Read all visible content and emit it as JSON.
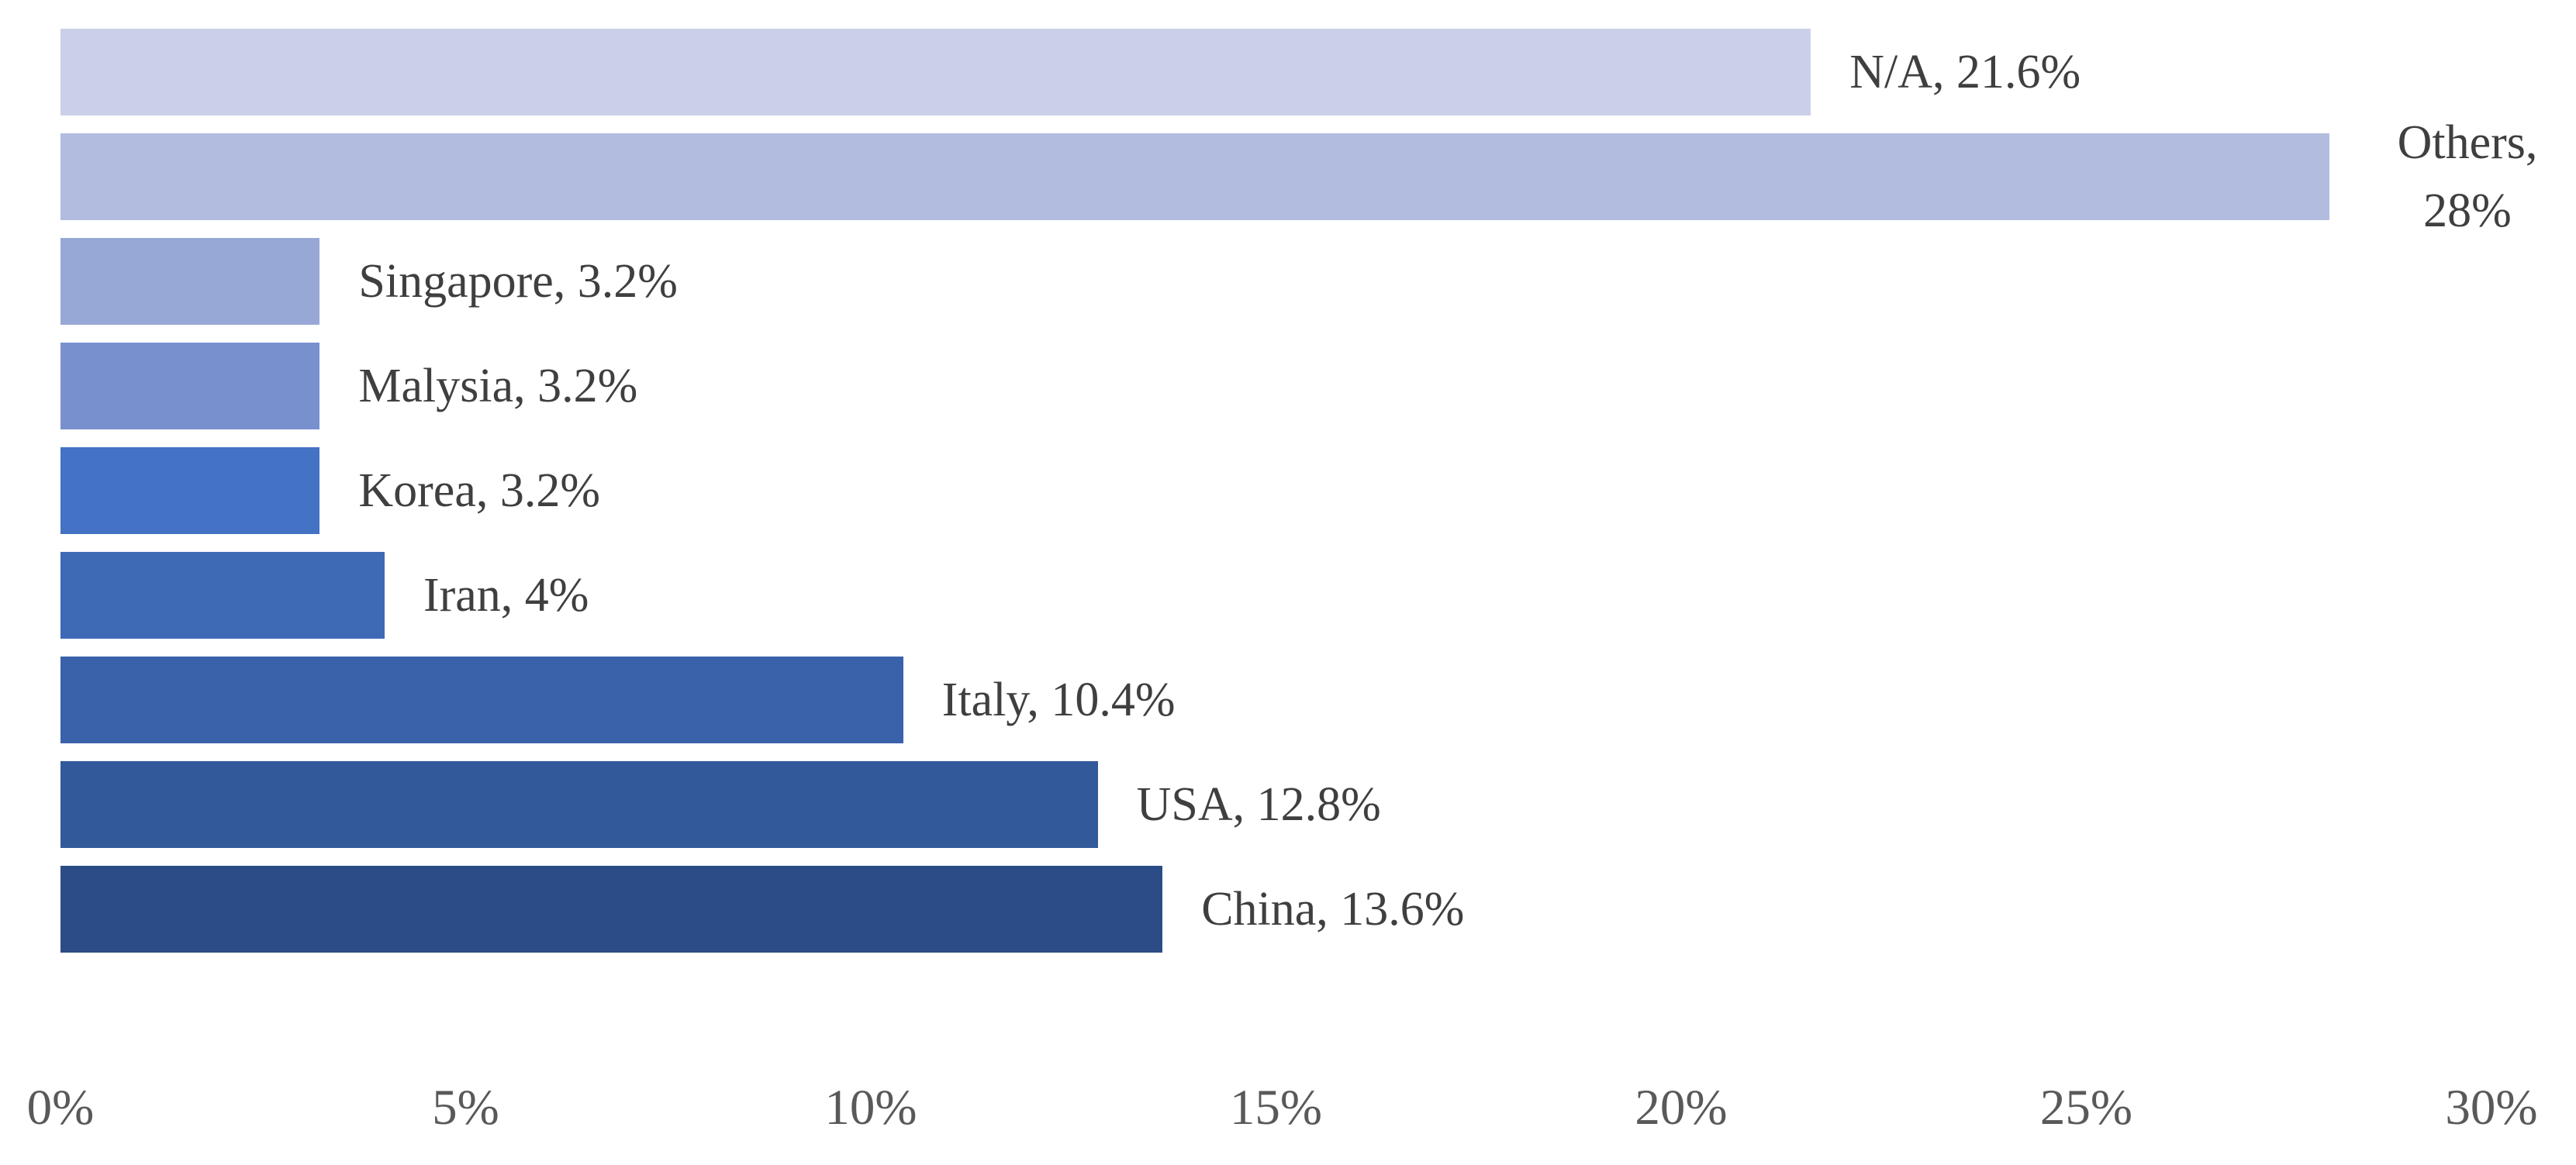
{
  "chart_data": {
    "type": "bar",
    "orientation": "horizontal",
    "title": "",
    "xlabel": "",
    "ylabel": "",
    "categories": [
      "N/A",
      "Others",
      "Singapore",
      "Malysia",
      "Korea",
      "Iran",
      "Italy",
      "USA",
      "China"
    ],
    "values": [
      21.6,
      28,
      3.2,
      3.2,
      3.2,
      4,
      10.4,
      12.8,
      13.6
    ],
    "data_labels": [
      "N/A, 21.6%",
      "Others, 28%",
      "Singapore, 3.2%",
      "Malysia, 3.2%",
      "Korea, 3.2%",
      "Iran, 4%",
      "Italy, 10.4%",
      "USA, 12.8%",
      "China, 13.6%"
    ],
    "bar_colors": [
      "#cbd0e8",
      "#b2bcde",
      "#98a8d6",
      "#7990ce",
      "#4472c4",
      "#3e69b5",
      "#3a62ab",
      "#325a9a",
      "#2b4c87"
    ],
    "wrapped_label_indices": [
      1
    ],
    "x_axis": {
      "min": 0,
      "max": 30,
      "tick_step": 5,
      "tick_labels": [
        "0%",
        "5%",
        "10%",
        "15%",
        "20%",
        "25%",
        "30%"
      ]
    },
    "grid": false,
    "legend": false,
    "colors": {
      "background": "#ffffff",
      "data_label_text": "#3f3f3f",
      "axis_tick_text": "#595959"
    }
  }
}
